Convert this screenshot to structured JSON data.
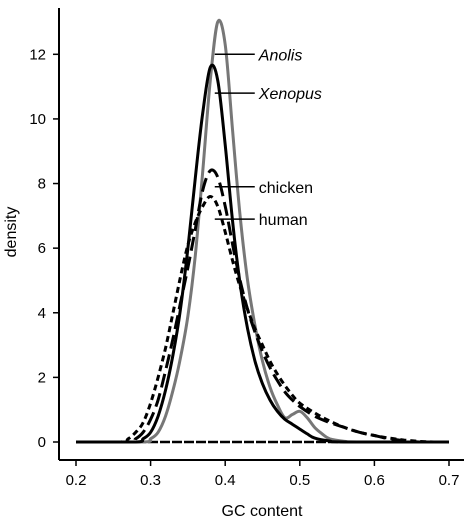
{
  "chart_data": {
    "type": "line",
    "title": "",
    "xlabel": "GC content",
    "ylabel": "density",
    "xlim": [
      0.2,
      0.7
    ],
    "ylim": [
      0,
      13
    ],
    "x_ticks": [
      "0.2",
      "0.3",
      "0.4",
      "0.5",
      "0.6",
      "0.7"
    ],
    "y_ticks": [
      "0",
      "2",
      "4",
      "6",
      "8",
      "10",
      "12"
    ],
    "grid": false,
    "legend": "none",
    "series": [
      {
        "name": "Anolis",
        "color": "#777777",
        "dash": "solid",
        "italic": true,
        "points": [
          [
            0.2,
            0
          ],
          [
            0.29,
            0
          ],
          [
            0.3,
            0.1
          ],
          [
            0.31,
            0.3
          ],
          [
            0.32,
            0.8
          ],
          [
            0.33,
            1.6
          ],
          [
            0.34,
            2.6
          ],
          [
            0.35,
            3.9
          ],
          [
            0.36,
            5.8
          ],
          [
            0.37,
            8.4
          ],
          [
            0.38,
            11.2
          ],
          [
            0.39,
            13.0
          ],
          [
            0.4,
            12.3
          ],
          [
            0.41,
            9.6
          ],
          [
            0.42,
            7.0
          ],
          [
            0.43,
            5.0
          ],
          [
            0.44,
            3.6
          ],
          [
            0.45,
            2.5
          ],
          [
            0.46,
            1.7
          ],
          [
            0.47,
            1.15
          ],
          [
            0.48,
            0.75
          ],
          [
            0.49,
            0.85
          ],
          [
            0.5,
            0.95
          ],
          [
            0.51,
            0.75
          ],
          [
            0.52,
            0.45
          ],
          [
            0.53,
            0.25
          ],
          [
            0.54,
            0.1
          ],
          [
            0.56,
            0.02
          ],
          [
            0.58,
            0
          ],
          [
            0.7,
            0
          ]
        ]
      },
      {
        "name": "Xenopus",
        "color": "#000000",
        "dash": "solid",
        "italic": true,
        "points": [
          [
            0.2,
            0
          ],
          [
            0.28,
            0
          ],
          [
            0.29,
            0.1
          ],
          [
            0.3,
            0.3
          ],
          [
            0.31,
            0.8
          ],
          [
            0.32,
            1.6
          ],
          [
            0.33,
            2.7
          ],
          [
            0.34,
            4.1
          ],
          [
            0.35,
            6.0
          ],
          [
            0.36,
            8.2
          ],
          [
            0.37,
            10.2
          ],
          [
            0.38,
            11.6
          ],
          [
            0.39,
            11.2
          ],
          [
            0.4,
            9.2
          ],
          [
            0.41,
            6.8
          ],
          [
            0.42,
            4.9
          ],
          [
            0.43,
            3.5
          ],
          [
            0.44,
            2.5
          ],
          [
            0.45,
            1.8
          ],
          [
            0.46,
            1.3
          ],
          [
            0.47,
            0.95
          ],
          [
            0.48,
            0.7
          ],
          [
            0.49,
            0.55
          ],
          [
            0.5,
            0.4
          ],
          [
            0.51,
            0.25
          ],
          [
            0.52,
            0.12
          ],
          [
            0.54,
            0.03
          ],
          [
            0.56,
            0
          ],
          [
            0.7,
            0
          ]
        ]
      },
      {
        "name": "chicken",
        "color": "#000000",
        "dash": "long-dash",
        "italic": false,
        "points": [
          [
            0.2,
            0
          ],
          [
            0.27,
            0
          ],
          [
            0.28,
            0.1
          ],
          [
            0.29,
            0.3
          ],
          [
            0.3,
            0.7
          ],
          [
            0.31,
            1.3
          ],
          [
            0.32,
            2.2
          ],
          [
            0.33,
            3.2
          ],
          [
            0.34,
            4.3
          ],
          [
            0.35,
            5.4
          ],
          [
            0.36,
            6.6
          ],
          [
            0.37,
            7.8
          ],
          [
            0.38,
            8.4
          ],
          [
            0.39,
            8.2
          ],
          [
            0.4,
            7.3
          ],
          [
            0.41,
            6.1
          ],
          [
            0.42,
            5.0
          ],
          [
            0.43,
            4.1
          ],
          [
            0.44,
            3.4
          ],
          [
            0.45,
            2.8
          ],
          [
            0.46,
            2.3
          ],
          [
            0.47,
            1.9
          ],
          [
            0.48,
            1.55
          ],
          [
            0.49,
            1.3
          ],
          [
            0.5,
            1.1
          ],
          [
            0.52,
            0.8
          ],
          [
            0.54,
            0.6
          ],
          [
            0.56,
            0.45
          ],
          [
            0.58,
            0.3
          ],
          [
            0.6,
            0.2
          ],
          [
            0.62,
            0.1
          ],
          [
            0.64,
            0.04
          ],
          [
            0.66,
            0
          ],
          [
            0.7,
            0
          ]
        ]
      },
      {
        "name": "human",
        "color": "#000000",
        "dash": "short-dash",
        "italic": false,
        "points": [
          [
            0.2,
            0
          ],
          [
            0.26,
            0
          ],
          [
            0.27,
            0.1
          ],
          [
            0.28,
            0.3
          ],
          [
            0.29,
            0.6
          ],
          [
            0.3,
            1.2
          ],
          [
            0.31,
            2.0
          ],
          [
            0.32,
            2.9
          ],
          [
            0.33,
            4.0
          ],
          [
            0.34,
            5.1
          ],
          [
            0.35,
            6.1
          ],
          [
            0.36,
            6.8
          ],
          [
            0.37,
            7.3
          ],
          [
            0.38,
            7.6
          ],
          [
            0.39,
            7.3
          ],
          [
            0.4,
            6.5
          ],
          [
            0.41,
            5.6
          ],
          [
            0.42,
            4.8
          ],
          [
            0.43,
            4.1
          ],
          [
            0.44,
            3.5
          ],
          [
            0.45,
            3.0
          ],
          [
            0.46,
            2.5
          ],
          [
            0.47,
            2.1
          ],
          [
            0.48,
            1.75
          ],
          [
            0.49,
            1.45
          ],
          [
            0.5,
            1.2
          ],
          [
            0.52,
            0.9
          ],
          [
            0.54,
            0.65
          ],
          [
            0.56,
            0.45
          ],
          [
            0.58,
            0.3
          ],
          [
            0.6,
            0.2
          ],
          [
            0.62,
            0.12
          ],
          [
            0.64,
            0.06
          ],
          [
            0.66,
            0.02
          ],
          [
            0.68,
            0
          ],
          [
            0.7,
            0
          ]
        ]
      }
    ],
    "annotations": [
      {
        "text": "Anolis",
        "italic": true,
        "x": 0.445,
        "y": 12.0
      },
      {
        "text": "Xenopus",
        "italic": true,
        "x": 0.445,
        "y": 10.8
      },
      {
        "text": "chicken",
        "italic": false,
        "x": 0.445,
        "y": 7.9
      },
      {
        "text": "human",
        "italic": false,
        "x": 0.445,
        "y": 6.9
      }
    ]
  }
}
